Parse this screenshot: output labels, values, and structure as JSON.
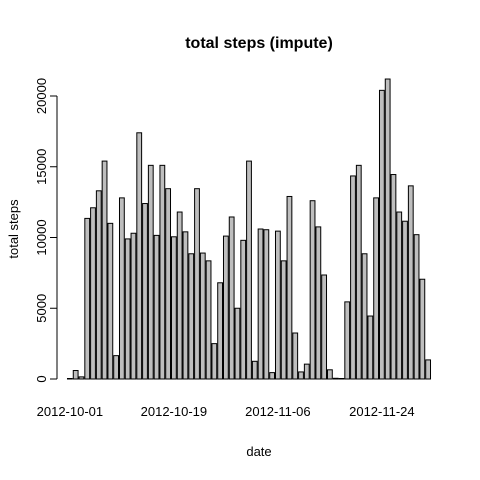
{
  "chart_data": {
    "type": "bar",
    "title": "total steps (impute)",
    "xlabel": "date",
    "ylabel": "total steps",
    "ylim": [
      0,
      21500
    ],
    "yticks": [
      0,
      5000,
      10000,
      15000,
      20000
    ],
    "xtick_labels": [
      {
        "label": "2012-10-01",
        "index": 0
      },
      {
        "label": "2012-10-19",
        "index": 18
      },
      {
        "label": "2012-11-06",
        "index": 36
      },
      {
        "label": "2012-11-24",
        "index": 54
      }
    ],
    "grid": false,
    "values": [
      0,
      600,
      150,
      11350,
      12100,
      13300,
      15400,
      11000,
      1650,
      12800,
      9900,
      10300,
      17400,
      12400,
      15100,
      10150,
      15100,
      13450,
      10050,
      11800,
      10400,
      8850,
      13450,
      8900,
      8350,
      2500,
      6800,
      10100,
      11450,
      5000,
      9800,
      15400,
      1250,
      10600,
      10550,
      450,
      10450,
      8350,
      12900,
      3250,
      500,
      1050,
      12600,
      10750,
      7350,
      650,
      50,
      0,
      5450,
      14350,
      15100,
      8850,
      4450,
      12800,
      20400,
      21200,
      14450,
      11800,
      11150,
      13650,
      10200,
      7050,
      1350
    ]
  }
}
